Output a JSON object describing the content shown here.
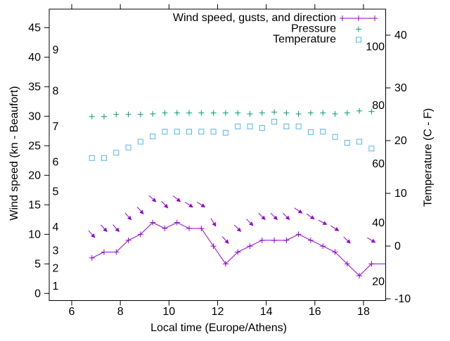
{
  "chart_data": {
    "type": "line",
    "title": "",
    "x_hours": [
      6.83,
      7.33,
      7.83,
      8.33,
      8.83,
      9.33,
      9.83,
      10.33,
      10.83,
      11.33,
      11.83,
      12.33,
      12.83,
      13.33,
      13.83,
      14.33,
      14.83,
      15.33,
      15.83,
      16.33,
      16.83,
      17.33,
      17.83,
      18.33
    ],
    "series": [
      {
        "name": "Wind speed, gusts, and direction",
        "color": "#9400D3",
        "y_axis": "left",
        "marker": "plus",
        "line": true,
        "values": [
          6,
          7,
          7,
          9,
          10,
          12,
          11,
          12,
          11,
          11,
          8,
          5,
          7,
          8,
          9,
          9,
          9,
          10,
          9,
          8,
          7,
          5,
          3,
          5
        ],
        "line_end_extra_point": {
          "x": 19.0,
          "y": 5
        },
        "gusts": {
          "marker": "direction-arrow",
          "values": [
            10,
            11,
            11,
            13,
            14,
            16,
            15,
            16,
            15,
            15,
            12,
            9,
            11,
            12,
            13,
            13,
            13,
            14,
            13,
            12,
            11,
            9,
            null,
            9
          ],
          "arrow_angle_deg_below_horizontal": [
            48,
            48,
            48,
            48,
            48,
            41,
            46,
            39,
            33,
            32,
            58,
            48,
            45,
            45,
            45,
            45,
            45,
            34,
            34,
            28,
            33,
            43,
            null,
            30
          ]
        }
      },
      {
        "name": "Pressure",
        "color": "#009E73",
        "y_axis": "left",
        "marker": "plus",
        "line": false,
        "values": [
          29.95,
          29.95,
          30.3,
          30.3,
          30.3,
          30.4,
          30.55,
          30.55,
          30.55,
          30.55,
          30.55,
          30.55,
          30.55,
          30.4,
          30.55,
          30.7,
          30.55,
          30.4,
          30.55,
          30.55,
          30.4,
          30.55,
          30.9,
          30.8
        ]
      },
      {
        "name": "Temperature",
        "color": "#56B4E9",
        "y_axis": "right",
        "marker": "open-square",
        "line": false,
        "values": [
          16.7,
          16.7,
          17.7,
          18.7,
          19.8,
          20.8,
          21.7,
          21.7,
          21.7,
          21.7,
          21.7,
          21.5,
          22.7,
          22.7,
          22.4,
          23.6,
          22.7,
          22.7,
          21.6,
          21.7,
          20.7,
          19.6,
          19.8,
          18.5
        ]
      }
    ],
    "axes": {
      "x": {
        "label": "Local time (Europe/Athens)",
        "ticks": [
          6,
          8,
          10,
          12,
          14,
          16,
          18
        ],
        "range": [
          5.08,
          18.92
        ]
      },
      "y_left": {
        "label": "Wind speed (kn - Beaufort)",
        "ticks": [
          0,
          5,
          10,
          15,
          20,
          25,
          30,
          35,
          40,
          45
        ],
        "range": [
          -1.2,
          48.1
        ],
        "inner_beaufort_labels": {
          "labels": [
            "1",
            "2",
            "3",
            "4",
            "5",
            "6",
            "7",
            "8",
            "9"
          ],
          "at_kn": [
            1,
            4,
            7,
            11,
            17,
            22,
            28,
            34,
            41
          ]
        }
      },
      "y_right": {
        "label": "Temperature (C - F)",
        "ticks": [
          -10,
          0,
          10,
          20,
          30,
          40
        ],
        "range": [
          -10.3,
          44.9
        ],
        "inner_fahrenheit_labels": {
          "labels": [
            "20",
            "40",
            "60",
            "80",
            "100"
          ],
          "at_c": [
            -6.7,
            4.4,
            15.6,
            26.7,
            37.8
          ]
        }
      }
    },
    "legend": {
      "position": "top-right-inside"
    }
  },
  "colors": {
    "wind": "#9400D3",
    "pressure": "#009E73",
    "temperature": "#56B4E9",
    "axis": "#000000",
    "background": "#ffffff"
  }
}
